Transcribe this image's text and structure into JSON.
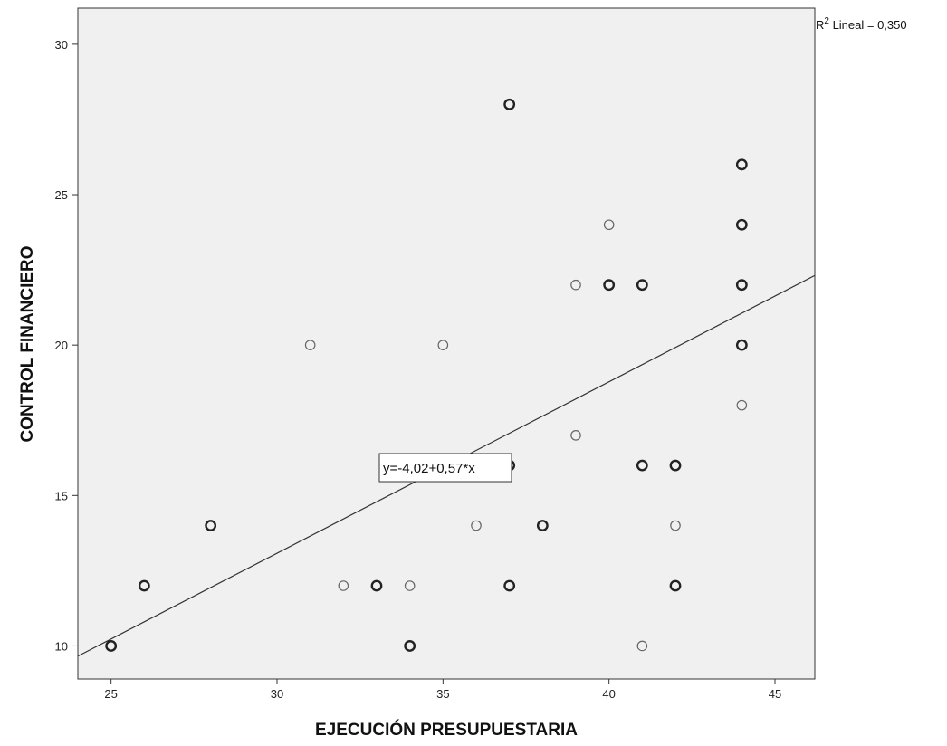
{
  "chart_data": {
    "type": "scatter",
    "xlabel": "EJECUCIÓN PRESUPUESTARIA",
    "ylabel": "CONTROL FINANCIERO",
    "xlim": [
      24,
      46.2
    ],
    "ylim": [
      8.9,
      31.2
    ],
    "xticks": [
      "25",
      "30",
      "35",
      "40",
      "45"
    ],
    "yticks": [
      "10",
      "15",
      "20",
      "25",
      "30"
    ],
    "background": "#f0f0f0",
    "grid": false,
    "points": [
      {
        "x": 25,
        "y": 10,
        "dup": true
      },
      {
        "x": 26,
        "y": 12,
        "dup": true
      },
      {
        "x": 28,
        "y": 14,
        "dup": true
      },
      {
        "x": 31,
        "y": 20,
        "dup": false
      },
      {
        "x": 32,
        "y": 12,
        "dup": false
      },
      {
        "x": 33,
        "y": 12,
        "dup": true
      },
      {
        "x": 34,
        "y": 12,
        "dup": false
      },
      {
        "x": 34,
        "y": 10,
        "dup": true
      },
      {
        "x": 35,
        "y": 20,
        "dup": false
      },
      {
        "x": 36,
        "y": 14,
        "dup": false
      },
      {
        "x": 37,
        "y": 28,
        "dup": true
      },
      {
        "x": 37,
        "y": 16,
        "dup": true
      },
      {
        "x": 37,
        "y": 12,
        "dup": true
      },
      {
        "x": 38,
        "y": 14,
        "dup": true
      },
      {
        "x": 39,
        "y": 22,
        "dup": false
      },
      {
        "x": 39,
        "y": 17,
        "dup": false
      },
      {
        "x": 40,
        "y": 24,
        "dup": false
      },
      {
        "x": 40,
        "y": 22,
        "dup": true
      },
      {
        "x": 41,
        "y": 22,
        "dup": true
      },
      {
        "x": 41,
        "y": 16,
        "dup": true
      },
      {
        "x": 41,
        "y": 10,
        "dup": false
      },
      {
        "x": 42,
        "y": 16,
        "dup": true
      },
      {
        "x": 42,
        "y": 14,
        "dup": false
      },
      {
        "x": 42,
        "y": 12,
        "dup": true
      },
      {
        "x": 44,
        "y": 26,
        "dup": true
      },
      {
        "x": 44,
        "y": 24,
        "dup": true
      },
      {
        "x": 44,
        "y": 22,
        "dup": true
      },
      {
        "x": 44,
        "y": 20,
        "dup": true
      },
      {
        "x": 44,
        "y": 18,
        "dup": false
      }
    ],
    "fit_line": {
      "intercept": -4.02,
      "slope": 0.57
    },
    "equation_label": "y=-4,02+0,57*x",
    "r2_prefix": "R",
    "r2_sup": "2",
    "r2_suffix": " Lineal = 0,350"
  }
}
